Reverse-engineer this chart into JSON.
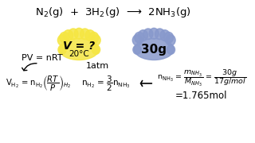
{
  "bg_color": "#ffffff",
  "title_eq": "N$_2$(g)  +  3H$_2$(g)  ⟶  2NH$_3$(g)",
  "pv_eq": "PV = nRT",
  "v_eq": "V$_{H_2}$ = n$_{H_2}$$\\left(\\dfrac{RT}{P}\\right)_{H_2}$",
  "n_h2_eq": "n$_{H_2}$ = $\\dfrac{3}{2}$n$_{NH_3}$",
  "arrow_left": "⟵",
  "n_nh3_eq": "n$_{NH_3}$ = $\\dfrac{m_{NH_3}}{M_{NH_3}}$ = $\\dfrac{30g}{17g/mol}$",
  "result_eq": "=1.765mol",
  "cloud_yellow_text": "V = ?\n20°C",
  "cloud_blue_text": "30g",
  "atm_text": "1atm",
  "yellow_cloud_color": "#f5e642",
  "blue_cloud_color": "#8899cc"
}
